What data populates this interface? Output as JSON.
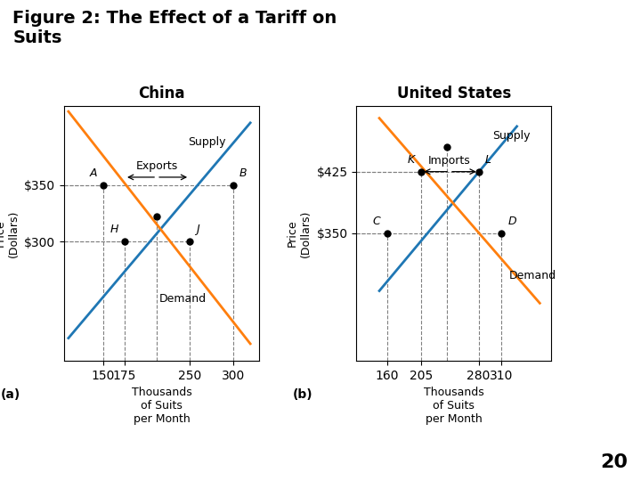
{
  "title": "Figure 2: The Effect of a Tariff on\nSuits",
  "annotations": [
    {
      "text": "20"
    }
  ],
  "chart_data": [
    {
      "type": "line",
      "title": "China",
      "subtitle": "(a)",
      "x_label": "Thousands\nof Suits\nper Month",
      "y_label": "Price\n(Dollars)",
      "xlim": [
        105,
        330
      ],
      "ylim": [
        195,
        420
      ],
      "xticks": [
        150,
        175,
        250,
        300
      ],
      "yticks": [
        {
          "value": 300,
          "label": "$300"
        },
        {
          "value": 350,
          "label": "$350"
        }
      ],
      "grid": false,
      "series": [
        {
          "name": "Supply",
          "x": [
            110,
            320
          ],
          "values": [
            215,
            405
          ]
        },
        {
          "name": "Demand",
          "x": [
            110,
            320
          ],
          "values": [
            415,
            210
          ]
        }
      ],
      "points": [
        {
          "label": "A",
          "x": 150,
          "y": 350
        },
        {
          "label": "B",
          "x": 300,
          "y": 350
        },
        {
          "label": "H",
          "x": 175,
          "y": 300
        },
        {
          "label": "J",
          "x": 250,
          "y": 300
        },
        {
          "x": 212,
          "y": 322
        }
      ],
      "annotations": [
        {
          "text": "Exports",
          "x": 212,
          "y": 357,
          "arrows_to": [
            "H",
            "J"
          ]
        },
        {
          "text": "Supply",
          "x": 248,
          "y": 388
        },
        {
          "text": "Demand",
          "x": 215,
          "y": 250
        }
      ]
    },
    {
      "type": "line",
      "title": "United States",
      "subtitle": "(b)",
      "x_label": "Thousands\nof Suits\nper Month",
      "y_label": "Price\n(Dollars)",
      "xlim": [
        120,
        375
      ],
      "ylim": [
        195,
        505
      ],
      "xticks": [
        160,
        205,
        280,
        310
      ],
      "yticks": [
        {
          "value": 350,
          "label": "$350"
        },
        {
          "value": 425,
          "label": "$425"
        }
      ],
      "grid": false,
      "series": [
        {
          "name": "Supply",
          "x": [
            150,
            330
          ],
          "values": [
            280,
            480
          ]
        },
        {
          "name": "Demand",
          "x": [
            150,
            360
          ],
          "values": [
            490,
            265
          ]
        }
      ],
      "points": [
        {
          "label": "C",
          "x": 160,
          "y": 350
        },
        {
          "label": "D",
          "x": 310,
          "y": 350
        },
        {
          "label": "K",
          "x": 205,
          "y": 425
        },
        {
          "label": "L",
          "x": 280,
          "y": 425
        },
        {
          "x": 238,
          "y": 455
        }
      ],
      "annotations": [
        {
          "text": "Imports",
          "x": 242,
          "y": 425,
          "arrows_to": [
            "K",
            "L"
          ]
        },
        {
          "text": "Supply",
          "x": 298,
          "y": 468
        },
        {
          "text": "Demand",
          "x": 320,
          "y": 298
        }
      ]
    }
  ]
}
